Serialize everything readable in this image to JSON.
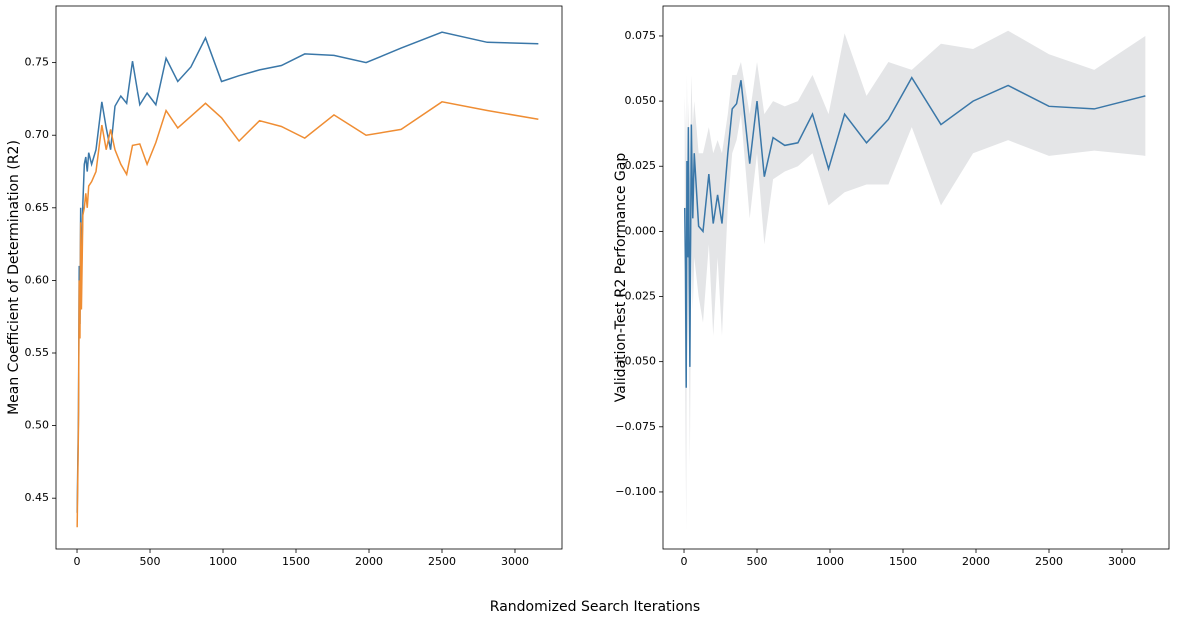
{
  "xlabel": "Randomized Search Iterations",
  "chart_data": [
    {
      "type": "line",
      "ylabel": "Mean Coefficient of Determination (R2)",
      "x": [
        1,
        10,
        15,
        20,
        25,
        30,
        40,
        50,
        60,
        70,
        80,
        100,
        130,
        170,
        200,
        230,
        260,
        300,
        340,
        380,
        430,
        480,
        540,
        610,
        690,
        780,
        880,
        990,
        1110,
        1250,
        1400,
        1560,
        1760,
        1980,
        2220,
        2500,
        2810,
        3160
      ],
      "series": [
        {
          "color": "#3a77a8",
          "values": [
            0.44,
            0.51,
            0.61,
            0.57,
            0.65,
            0.6,
            0.653,
            0.68,
            0.685,
            0.675,
            0.688,
            0.68,
            0.69,
            0.723,
            0.705,
            0.69,
            0.72,
            0.727,
            0.722,
            0.751,
            0.721,
            0.729,
            0.721,
            0.753,
            0.737,
            0.747,
            0.767,
            0.737,
            0.741,
            0.745,
            0.748,
            0.756,
            0.755,
            0.75,
            0.76,
            0.771,
            0.764,
            0.763
          ]
        },
        {
          "color": "#ef8d33",
          "values": [
            0.43,
            0.5,
            0.6,
            0.56,
            0.64,
            0.58,
            0.645,
            0.65,
            0.66,
            0.65,
            0.665,
            0.668,
            0.675,
            0.707,
            0.69,
            0.704,
            0.69,
            0.68,
            0.673,
            0.693,
            0.694,
            0.68,
            0.695,
            0.717,
            0.705,
            0.713,
            0.722,
            0.712,
            0.696,
            0.71,
            0.706,
            0.698,
            0.714,
            0.7,
            0.704,
            0.723,
            0.717,
            0.711
          ]
        }
      ],
      "xlim": [
        -144,
        3322
      ],
      "ylim": [
        0.415,
        0.789
      ],
      "xticks": [
        0,
        500,
        1000,
        1500,
        2000,
        2500,
        3000
      ],
      "yticks": [
        0.45,
        {
          "value": 0.5,
          "label": "0.50"
        },
        0.55,
        {
          "value": 0.6,
          "label": "0.60"
        },
        0.65,
        {
          "value": 0.7,
          "label": "0.70"
        },
        0.75
      ]
    },
    {
      "type": "line",
      "ylabel": "Validation-Test R2 Performance Gap",
      "x": [
        5,
        10,
        15,
        20,
        25,
        30,
        40,
        50,
        60,
        70,
        100,
        130,
        170,
        200,
        230,
        260,
        300,
        330,
        360,
        390,
        450,
        500,
        550,
        610,
        690,
        780,
        880,
        990,
        1100,
        1250,
        1400,
        1560,
        1760,
        1980,
        2220,
        2500,
        2810,
        3160
      ],
      "series": [
        {
          "color": "#3a77a8",
          "band_color": "#e4e5e7",
          "values": [
            0.009,
            -0.015,
            -0.06,
            0.027,
            -0.01,
            0.04,
            -0.052,
            0.041,
            0.005,
            0.03,
            0.002,
            0.0,
            0.022,
            0.003,
            0.014,
            0.003,
            0.03,
            0.047,
            0.049,
            0.058,
            0.026,
            0.05,
            0.021,
            0.036,
            0.033,
            0.034,
            0.045,
            0.024,
            0.045,
            0.034,
            0.043,
            0.059,
            0.041,
            0.05,
            0.056,
            0.048,
            0.047,
            0.052
          ],
          "upper": [
            0.052,
            0.04,
            0.02,
            0.06,
            0.03,
            0.05,
            0.02,
            0.06,
            0.04,
            0.05,
            0.03,
            0.03,
            0.04,
            0.03,
            0.035,
            0.03,
            0.045,
            0.06,
            0.06,
            0.065,
            0.045,
            0.065,
            0.045,
            0.05,
            0.048,
            0.05,
            0.06,
            0.045,
            0.076,
            0.052,
            0.065,
            0.062,
            0.072,
            0.07,
            0.077,
            0.068,
            0.062,
            0.075
          ],
          "lower": [
            -0.03,
            -0.075,
            -0.115,
            -0.01,
            -0.05,
            -0.02,
            -0.09,
            0.0,
            -0.03,
            -0.01,
            -0.025,
            -0.035,
            -0.005,
            -0.04,
            -0.01,
            -0.04,
            0.01,
            0.03,
            0.035,
            0.045,
            0.005,
            0.03,
            -0.005,
            0.02,
            0.023,
            0.025,
            0.03,
            0.01,
            0.015,
            0.018,
            0.018,
            0.04,
            0.01,
            0.03,
            0.035,
            0.029,
            0.031,
            0.029
          ]
        }
      ],
      "xlim": [
        -144,
        3322
      ],
      "ylim": [
        -0.1219,
        0.0865
      ],
      "xticks": [
        0,
        500,
        1000,
        1500,
        2000,
        2500,
        3000
      ],
      "yticks": [
        {
          "value": 0.075,
          "label": "0.075"
        },
        {
          "value": 0.05,
          "label": "0.050"
        },
        {
          "value": 0.025,
          "label": "0.025"
        },
        {
          "value": 0,
          "label": "0.000"
        },
        {
          "value": -0.025,
          "label": "−0.025"
        },
        {
          "value": -0.05,
          "label": "−0.050"
        },
        {
          "value": -0.075,
          "label": "−0.075"
        },
        {
          "value": -0.1,
          "label": "−0.100"
        }
      ]
    }
  ]
}
